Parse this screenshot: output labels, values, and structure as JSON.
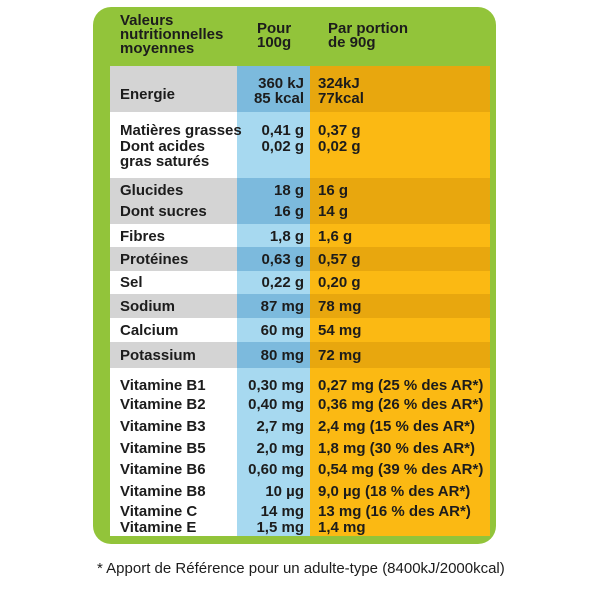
{
  "header": {
    "label": [
      "Valeurs",
      "nutritionnelles",
      "moyennes"
    ],
    "per100": [
      "Pour",
      "100g"
    ],
    "portion": [
      "Par portion",
      "de 90g"
    ]
  },
  "rows": {
    "energie": {
      "label": "Energie",
      "per100": [
        "360 kJ",
        "85 kcal"
      ],
      "portion": [
        "324kJ",
        "77kcal"
      ]
    },
    "matieres": {
      "label": "Matières grasses",
      "per100": "0,41 g",
      "portion": "0,37 g"
    },
    "acides": {
      "label": [
        "Dont acides",
        "gras saturés"
      ],
      "per100": "0,02 g",
      "portion": "0,02 g"
    },
    "glucides": {
      "label": "Glucides",
      "per100": "18 g",
      "portion": "16 g"
    },
    "sucres": {
      "label": "Dont sucres",
      "per100": "16 g",
      "portion": "14 g"
    },
    "fibres": {
      "label": "Fibres",
      "per100": "1,8 g",
      "portion": "1,6 g"
    },
    "proteines": {
      "label": "Protéines",
      "per100": "0,63 g",
      "portion": "0,57 g"
    },
    "sel": {
      "label": "Sel",
      "per100": "0,22 g",
      "portion": "0,20 g"
    },
    "sodium": {
      "label": "Sodium",
      "per100": "87 mg",
      "portion": "78 mg"
    },
    "calcium": {
      "label": "Calcium",
      "per100": "60 mg",
      "portion": "54 mg"
    },
    "potassium": {
      "label": "Potassium",
      "per100": "80 mg",
      "portion": "72 mg"
    },
    "b1": {
      "label": "Vitamine B1",
      "per100": "0,30 mg",
      "portion": "0,27 mg (25 % des AR*)"
    },
    "b2": {
      "label": "Vitamine B2",
      "per100": "0,40 mg",
      "portion": "0,36 mg (26 % des AR*)"
    },
    "b3": {
      "label": "Vitamine B3",
      "per100": "2,7 mg",
      "portion": "2,4 mg (15 % des AR*)"
    },
    "b5": {
      "label": "Vitamine B5",
      "per100": "2,0 mg",
      "portion": "1,8 mg (30 % des AR*)"
    },
    "b6": {
      "label": "Vitamine B6",
      "per100": "0,60 mg",
      "portion": "0,54 mg (39 % des AR*)"
    },
    "b8": {
      "label": "Vitamine B8",
      "per100": "10 µg",
      "portion": "9,0 µg (18 % des AR*)"
    },
    "c": {
      "label": "Vitamine C",
      "per100": "14 mg",
      "portion": "13 mg (16 % des AR*)"
    },
    "e": {
      "label": "Vitamine E",
      "per100": "1,5 mg",
      "portion": "1,4 mg"
    }
  },
  "footnote": "* Apport de Référence pour un adulte-type (8400kJ/2000kcal)",
  "colors": {
    "frame": "#92c43a",
    "per100": "#a7d9f0",
    "per100_band": "#7cbadd",
    "portion": "#fbb913",
    "portion_band": "#e8a70e",
    "label_band": "#d4d4d4"
  }
}
